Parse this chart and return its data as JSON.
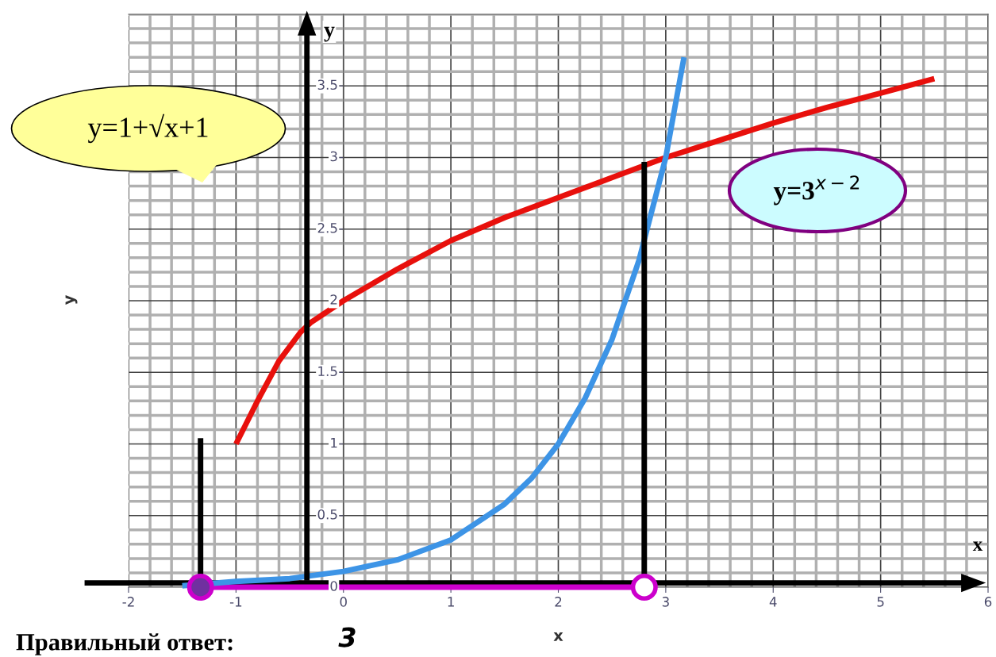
{
  "chart_data": {
    "type": "line",
    "xlabel": "x",
    "ylabel": "y",
    "xlim": [
      -2,
      6
    ],
    "ylim": [
      0,
      4
    ],
    "xticks": [
      -2,
      -1,
      0,
      1,
      2,
      3,
      4,
      5,
      6
    ],
    "yticks": [
      0,
      0.5,
      1,
      1.5,
      2,
      2.5,
      3,
      3.5
    ],
    "grid": true,
    "marker": "none",
    "series": [
      {
        "color": "#e8100c",
        "x": [
          -1,
          -0.8,
          -0.6,
          -0.4,
          -0.3,
          0,
          0.5,
          1,
          1.5,
          2,
          2.5,
          3,
          3.5,
          4,
          4.5,
          5,
          5.5
        ],
        "values": [
          1.0,
          1.3,
          1.58,
          1.78,
          1.85,
          2.0,
          2.22,
          2.42,
          2.58,
          2.72,
          2.86,
          3.0,
          3.12,
          3.24,
          3.35,
          3.45,
          3.55
        ]
      },
      {
        "color": "#3d94e6",
        "x": [
          -1.5,
          -1,
          -0.5,
          0,
          0.5,
          1,
          1.5,
          1.75,
          2,
          2.25,
          2.5,
          2.75,
          3,
          3.17
        ],
        "values": [
          0.01,
          0.04,
          0.06,
          0.11,
          0.19,
          0.33,
          0.58,
          0.76,
          1.0,
          1.32,
          1.73,
          2.28,
          3.0,
          3.7
        ]
      },
      {
        "color": "#000000",
        "x": [
          -1.33,
          -1.33
        ],
        "values": [
          0,
          1.04
        ]
      },
      {
        "color": "#000000",
        "x": [
          2.8,
          2.8
        ],
        "values": [
          0,
          2.97
        ]
      },
      {
        "color": "#cc00cc",
        "x": [
          -1.33,
          2.8
        ],
        "values": [
          0,
          0
        ]
      },
      {
        "type": "scatter",
        "marker": "circle",
        "color": "#7030a0",
        "x": [
          -1.33
        ],
        "values": [
          0
        ]
      },
      {
        "type": "scatter",
        "marker": "circle",
        "color": "#ffffff",
        "x": [
          2.8
        ],
        "values": [
          0
        ]
      }
    ],
    "annotations": [
      "y=1+√x+1",
      "y=3$^{x−2}$",
      "y",
      "x",
      "Правильный ответ:",
      "3"
    ]
  }
}
